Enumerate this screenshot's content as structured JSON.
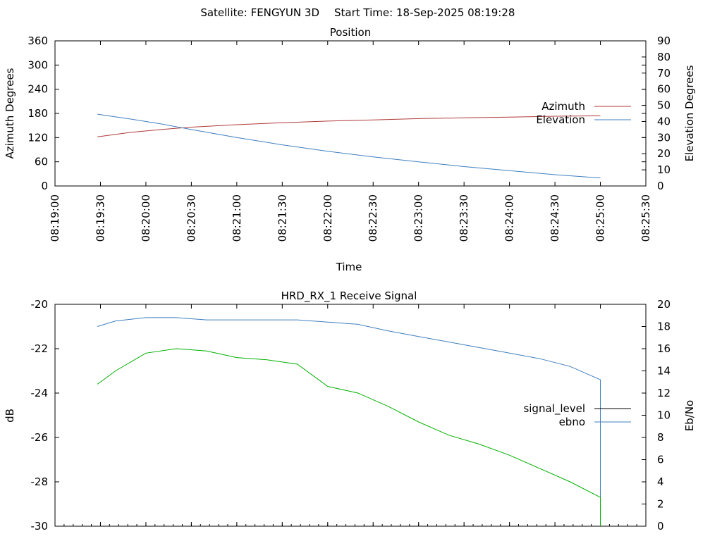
{
  "header": {
    "satellite": "Satellite: FENGYUN 3D",
    "start_time": "Start Time: 18-Sep-2025 08:19:28"
  },
  "chart_data": [
    {
      "type": "line",
      "title": "Position",
      "xlabel": "Time",
      "ylabel_left": "Azimuth Degrees",
      "ylabel_right": "Elevation Degrees",
      "ylim_left": [
        0,
        360
      ],
      "ylim_right": [
        0,
        90
      ],
      "yticks_left": [
        "0",
        "60",
        "120",
        "180",
        "240",
        "300",
        "360"
      ],
      "yticks_right": [
        "0",
        "10",
        "20",
        "30",
        "40",
        "50",
        "60",
        "70",
        "80",
        "90"
      ],
      "xticks": [
        "08:19:00",
        "08:19:30",
        "08:20:00",
        "08:20:30",
        "08:21:00",
        "08:21:30",
        "08:22:00",
        "08:22:30",
        "08:23:00",
        "08:23:30",
        "08:24:00",
        "08:24:30",
        "08:25:00",
        "08:25:30"
      ],
      "xlim": [
        "08:19:00",
        "08:25:30"
      ],
      "grid": false,
      "legend": "right",
      "series": [
        {
          "name": "Azimuth",
          "axis": "left",
          "color": "#b03a3a",
          "x": [
            "08:19:28",
            "08:19:50",
            "08:20:10",
            "08:20:30",
            "08:21:00",
            "08:21:30",
            "08:22:00",
            "08:22:30",
            "08:23:00",
            "08:23:30",
            "08:24:00",
            "08:24:30",
            "08:25:00"
          ],
          "values": [
            122,
            133,
            140,
            146,
            152,
            157,
            161,
            164,
            167,
            169,
            171,
            173,
            174
          ]
        },
        {
          "name": "Elevation",
          "axis": "right",
          "color": "#3f7fbf",
          "x": [
            "08:19:28",
            "08:19:50",
            "08:20:10",
            "08:20:30",
            "08:21:00",
            "08:21:30",
            "08:22:00",
            "08:22:30",
            "08:23:00",
            "08:23:30",
            "08:24:00",
            "08:24:30",
            "08:25:00"
          ],
          "values": [
            44.5,
            41.5,
            38.5,
            35,
            30,
            25.5,
            21.5,
            18,
            15,
            12,
            9.5,
            7,
            5
          ]
        }
      ]
    },
    {
      "type": "line",
      "title": "HRD_RX_1 Receive Signal",
      "xlabel": "",
      "ylabel_left": "dB",
      "ylabel_right": "Eb/No",
      "ylim_left": [
        -30,
        -20
      ],
      "ylim_right": [
        0,
        20
      ],
      "yticks_left": [
        "-30",
        "-28",
        "-26",
        "-24",
        "-22",
        "-20"
      ],
      "yticks_right": [
        "0",
        "2",
        "4",
        "6",
        "8",
        "10",
        "12",
        "14",
        "16",
        "18",
        "20"
      ],
      "xlim": [
        "08:19:00",
        "08:25:30"
      ],
      "grid": false,
      "legend": "right",
      "series": [
        {
          "name": "signal_level",
          "axis": "left",
          "color": "#000000",
          "x": [],
          "values": []
        },
        {
          "name": "ebno",
          "axis": "right",
          "color": "#3f7fbf",
          "x": [
            "08:19:28",
            "08:19:40",
            "08:20:00",
            "08:20:20",
            "08:20:40",
            "08:21:00",
            "08:21:20",
            "08:21:40",
            "08:22:00",
            "08:22:20",
            "08:22:40",
            "08:23:00",
            "08:23:20",
            "08:23:40",
            "08:24:00",
            "08:24:20",
            "08:24:40",
            "08:25:00",
            "08:25:00",
            "08:25:00"
          ],
          "values": [
            18.0,
            18.5,
            18.8,
            18.8,
            18.6,
            18.6,
            18.6,
            18.6,
            18.4,
            18.2,
            17.6,
            17.1,
            16.6,
            16.1,
            15.6,
            15.1,
            14.4,
            13.2,
            13.2,
            0
          ]
        },
        {
          "name": "",
          "axis": "left",
          "color": "#00b000",
          "x": [
            "08:19:28",
            "08:19:40",
            "08:20:00",
            "08:20:20",
            "08:20:40",
            "08:21:00",
            "08:21:20",
            "08:21:40",
            "08:22:00",
            "08:22:20",
            "08:22:40",
            "08:23:00",
            "08:23:20",
            "08:23:40",
            "08:24:00",
            "08:24:20",
            "08:24:40",
            "08:25:00",
            "08:25:00"
          ],
          "values": [
            -23.6,
            -23.0,
            -22.2,
            -22.0,
            -22.1,
            -22.4,
            -22.5,
            -22.7,
            -23.7,
            -24.0,
            -24.6,
            -25.3,
            -25.9,
            -26.3,
            -26.8,
            -27.4,
            -28.0,
            -28.7,
            -30.0
          ]
        }
      ]
    }
  ]
}
